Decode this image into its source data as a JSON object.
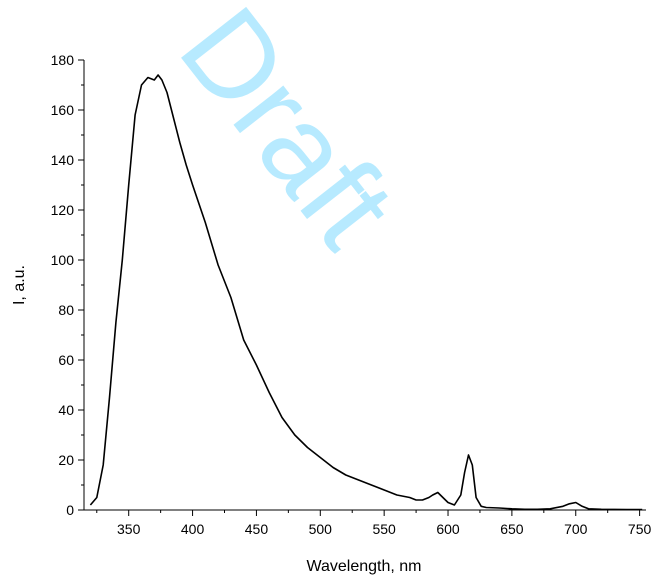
{
  "watermark": "Draft",
  "colors": {
    "line": "#000000",
    "watermark": "#33c6ff"
  },
  "chart_data": {
    "type": "line",
    "title": "",
    "xlabel": "Wavelength, nm",
    "ylabel": "I, a.u.",
    "xlim": [
      315,
      755
    ],
    "ylim": [
      0,
      180
    ],
    "xticks": [
      350,
      400,
      450,
      500,
      550,
      600,
      650,
      700,
      750
    ],
    "yticks": [
      0,
      20,
      40,
      60,
      80,
      100,
      120,
      140,
      160,
      180
    ],
    "grid": false,
    "legend": "none",
    "series": [
      {
        "x": [
          320,
          325,
          330,
          335,
          340,
          345,
          350,
          355,
          360,
          365,
          370,
          373,
          376,
          380,
          385,
          390,
          395,
          400,
          410,
          420,
          430,
          440,
          450,
          460,
          470,
          480,
          490,
          500,
          510,
          520,
          530,
          540,
          550,
          560,
          570,
          575,
          580,
          585,
          588,
          592,
          596,
          600,
          605,
          610,
          613,
          616,
          619,
          622,
          626,
          630,
          640,
          650,
          660,
          670,
          680,
          690,
          695,
          700,
          705,
          710,
          720,
          740,
          752
        ],
        "y": [
          2,
          5,
          18,
          45,
          75,
          100,
          130,
          158,
          170,
          173,
          172,
          174,
          172,
          167,
          157,
          147,
          138,
          130,
          115,
          98,
          85,
          68,
          58,
          47,
          37,
          30,
          25,
          21,
          17,
          14,
          12,
          10,
          8,
          6,
          5,
          4,
          4,
          5,
          6,
          7,
          5,
          3,
          2,
          6,
          15,
          22,
          18,
          5,
          1.5,
          1,
          0.8,
          0.5,
          0.3,
          0.3,
          0.5,
          1.5,
          2.5,
          3,
          1.5,
          0.5,
          0.3,
          0.2,
          0.2
        ]
      }
    ]
  }
}
